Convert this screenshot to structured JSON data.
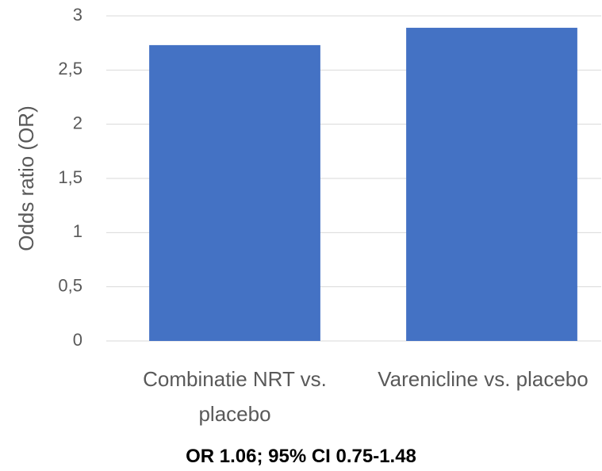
{
  "chart_data": {
    "type": "bar",
    "y_label": "Odds ratio (OR)",
    "annotation": "OR 1.06; 95% CI 0.75-1.48",
    "categories": [
      "Combinatie NRT vs. placebo",
      "Varenicline vs. placebo"
    ],
    "values": [
      2.73,
      2.89
    ],
    "color": "#4472c4",
    "ylim": [
      0,
      3
    ],
    "yticks": [
      0,
      {
        "value": 0.5,
        "label": "0,5"
      },
      1,
      {
        "value": 1.5,
        "label": "1,5"
      },
      2,
      {
        "value": 2.5,
        "label": "2,5"
      },
      3
    ],
    "grid": true
  }
}
